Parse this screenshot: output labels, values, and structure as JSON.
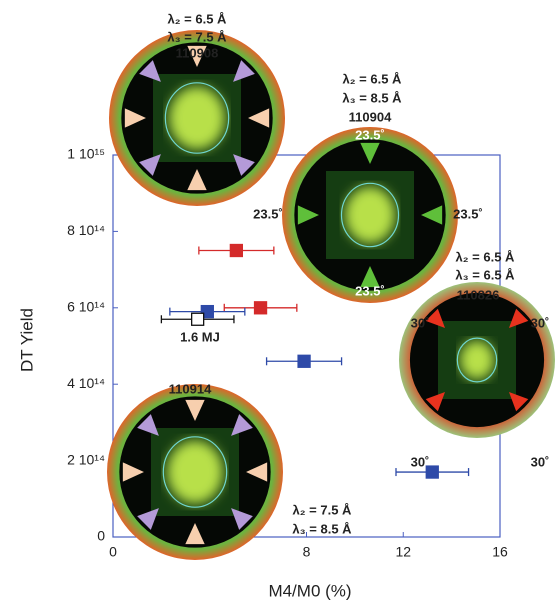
{
  "chart_data": {
    "type": "scatter",
    "x_label": "M4/M0  (%)",
    "y_label": "DT  Yield",
    "xlim": [
      0,
      16
    ],
    "xticks": [
      0,
      4,
      8,
      12,
      16
    ],
    "ylim": [
      0,
      1000000000000000
    ],
    "yticks": [
      0,
      {
        "value": 200000000000000,
        "label": "2 10¹⁴"
      },
      {
        "value": 400000000000000,
        "label": "4 10¹⁴"
      },
      {
        "value": 600000000000000,
        "label": "6 10¹⁴"
      },
      {
        "value": 800000000000000,
        "label": "8 10¹⁴"
      },
      {
        "value": 1000000000000000,
        "label": "1 10¹⁵"
      }
    ],
    "frame_color": "#4a5fc1",
    "series": [
      {
        "color": "#d42a2a",
        "filled": true,
        "x": [
          5.1,
          6.1
        ],
        "values": [
          750000000000000,
          600000000000000
        ],
        "xerr": [
          1.55,
          1.5
        ]
      },
      {
        "color": "#2e4aa8",
        "filled": true,
        "x": [
          3.9,
          7.9,
          13.2
        ],
        "values": [
          590000000000000,
          460000000000000,
          170000000000000
        ],
        "xerr": [
          1.55,
          1.55,
          1.5
        ]
      },
      {
        "color": "#111111",
        "filled": false,
        "x": [
          3.5
        ],
        "values": [
          570000000000000
        ],
        "xerr": [
          1.5
        ]
      }
    ],
    "annotations": {
      "shot_110908": [
        "λ₂ = 6.5 Å",
        "λ₃ = 7.5 Å",
        "110908"
      ],
      "shot_110904": [
        "λ₂ = 6.5 Å",
        "λ₃ = 8.5 Å",
        "110904",
        "23.5˚",
        "23.5˚",
        "23.5˚",
        "23.5˚"
      ],
      "shot_110826": [
        "λ₂ = 6.5 Å",
        "λ₃ = 6.5 Å",
        "110826",
        "30˚",
        "30˚",
        "30˚",
        "30˚"
      ],
      "shot_110914": [
        "110914"
      ],
      "bottom_right": [
        "λ₂ = 7.5 Å",
        "λ₃ = 8.5 Å"
      ],
      "energy": "1.6 MJ"
    }
  }
}
